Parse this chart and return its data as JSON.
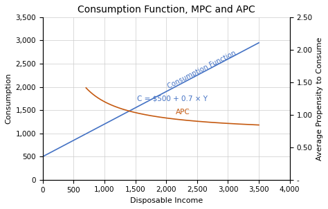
{
  "title": "Consumption Function, MPC and APC",
  "xlabel": "Disposable Income",
  "ylabel_left": "Consumption",
  "ylabel_right": "Average Propensity to Consume",
  "xlim": [
    0,
    4000
  ],
  "ylim_left": [
    0,
    3500
  ],
  "ylim_right": [
    0.0,
    2.5
  ],
  "xticks": [
    0,
    500,
    1000,
    1500,
    2000,
    2500,
    3000,
    3500,
    4000
  ],
  "yticks_left": [
    0,
    500,
    1000,
    1500,
    2000,
    2500,
    3000,
    3500
  ],
  "yticks_right": [
    0.0,
    0.5,
    1.0,
    1.5,
    2.0,
    2.5
  ],
  "consumption_intercept": 500,
  "consumption_slope": 0.7,
  "consumption_label": "Consumption Function",
  "consumption_color": "#4472C4",
  "apc_label": "APC",
  "apc_color": "#C55A11",
  "equation_label": "C = $500 + 0.7 × Y",
  "x_start": 0,
  "x_end": 3500,
  "apc_x_start": 700,
  "apc_x_end": 3500,
  "background_color": "#FFFFFF",
  "grid_color": "#CCCCCC",
  "title_fontsize": 10,
  "label_fontsize": 8,
  "tick_fontsize": 7.5
}
